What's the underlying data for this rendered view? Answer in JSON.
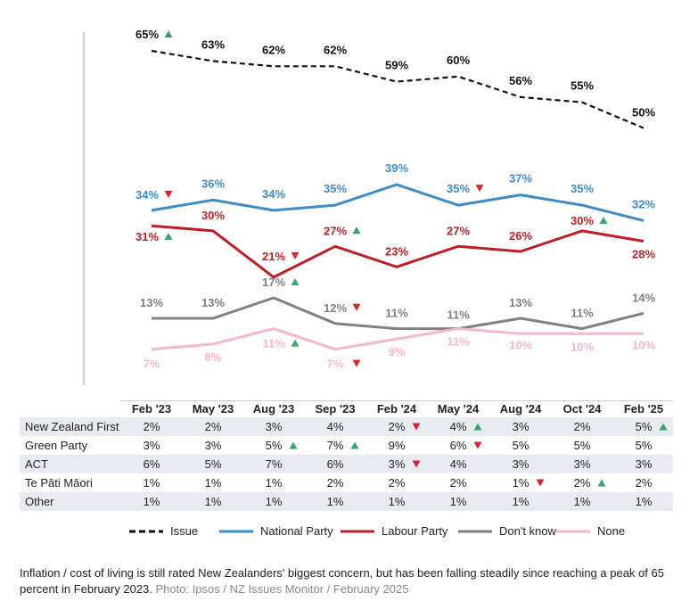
{
  "chart_data": {
    "type": "line",
    "categories": [
      "Feb '23",
      "May '23",
      "Aug '23",
      "Sep '23",
      "Feb '24",
      "May '24",
      "Aug '24",
      "Oct '24",
      "Feb '25"
    ],
    "ylim": [
      0,
      70
    ],
    "series": [
      {
        "name": "Issue",
        "color": "#111111",
        "dash": true,
        "values": [
          65,
          63,
          62,
          62,
          59,
          60,
          56,
          55,
          50
        ],
        "labels": [
          "65%",
          "63%",
          "62%",
          "62%",
          "59%",
          "60%",
          "56%",
          "55%",
          "50%"
        ],
        "arrows": [
          "up",
          "",
          "",
          "",
          "",
          "",
          "",
          "",
          ""
        ]
      },
      {
        "name": "National Party",
        "color": "#3b8ccb",
        "dash": false,
        "values": [
          34,
          36,
          34,
          35,
          39,
          35,
          37,
          35,
          32
        ],
        "labels": [
          "34%",
          "36%",
          "34%",
          "35%",
          "39%",
          "35%",
          "37%",
          "35%",
          "32%"
        ],
        "arrows": [
          "down",
          "",
          "",
          "",
          "",
          "down",
          "",
          "",
          ""
        ]
      },
      {
        "name": "Labour Party",
        "color": "#bf1e24",
        "dash": false,
        "values": [
          31,
          30,
          21,
          27,
          23,
          27,
          26,
          30,
          28
        ],
        "labels": [
          "31%",
          "30%",
          "21%",
          "27%",
          "23%",
          "27%",
          "26%",
          "30%",
          "28%"
        ],
        "arrows": [
          "up",
          "",
          "down",
          "up",
          "",
          "",
          "",
          "up",
          ""
        ]
      },
      {
        "name": "Don't know",
        "color": "#808080",
        "dash": false,
        "values": [
          13,
          13,
          17,
          12,
          11,
          11,
          13,
          11,
          14
        ],
        "labels": [
          "13%",
          "13%",
          "17%",
          "12%",
          "11%",
          "11%",
          "13%",
          "11%",
          "14%"
        ],
        "arrows": [
          "",
          "",
          "up",
          "down",
          "",
          "",
          "",
          "",
          ""
        ]
      },
      {
        "name": "None",
        "color": "#f7b6c9",
        "dash": false,
        "values": [
          7,
          8,
          11,
          7,
          9,
          11,
          10,
          10,
          10
        ],
        "labels": [
          "7%",
          "8%",
          "11%",
          "7%",
          "9%",
          "11%",
          "10%",
          "10%",
          "10%"
        ],
        "arrows": [
          "",
          "",
          "up",
          "down",
          "",
          "",
          "",
          "",
          ""
        ]
      }
    ],
    "table": {
      "rows": [
        {
          "name": "New Zealand First",
          "values": [
            "2%",
            "2%",
            "3%",
            "4%",
            "2%",
            "4%",
            "3%",
            "2%",
            "5%"
          ],
          "arrows": [
            "",
            "",
            "",
            "",
            "down",
            "up",
            "",
            "",
            "up"
          ]
        },
        {
          "name": "Green Party",
          "values": [
            "3%",
            "3%",
            "5%",
            "7%",
            "9%",
            "6%",
            "5%",
            "5%",
            "5%"
          ],
          "arrows": [
            "",
            "",
            "up",
            "up",
            "",
            "down",
            "",
            "",
            ""
          ]
        },
        {
          "name": "ACT",
          "values": [
            "6%",
            "5%",
            "7%",
            "6%",
            "3%",
            "4%",
            "3%",
            "3%",
            "3%"
          ],
          "arrows": [
            "",
            "",
            "",
            "",
            "down",
            "",
            "",
            "",
            ""
          ]
        },
        {
          "name": "Te Pāti Māori",
          "values": [
            "1%",
            "1%",
            "1%",
            "2%",
            "2%",
            "2%",
            "1%",
            "2%",
            "2%"
          ],
          "arrows": [
            "",
            "",
            "",
            "",
            "",
            "",
            "down",
            "up",
            ""
          ]
        },
        {
          "name": "Other",
          "values": [
            "1%",
            "1%",
            "1%",
            "1%",
            "1%",
            "1%",
            "1%",
            "1%",
            "1%"
          ],
          "arrows": [
            "",
            "",
            "",
            "",
            "",
            "",
            "",
            "",
            ""
          ]
        }
      ]
    },
    "legend": [
      "Issue",
      "National Party",
      "Labour Party",
      "Don't know",
      "None"
    ],
    "up_color": "#3aa56b",
    "down_color": "#d6262b",
    "stripe_color": "#e8ecf2"
  },
  "caption": {
    "text": "Inflation / cost of living is still rated New Zealanders' biggest concern, but has been falling steadily since reaching a peak of 65 percent in February 2023.",
    "credit": "Photo: Ipsos / NZ Issues Monitor / February 2025"
  }
}
